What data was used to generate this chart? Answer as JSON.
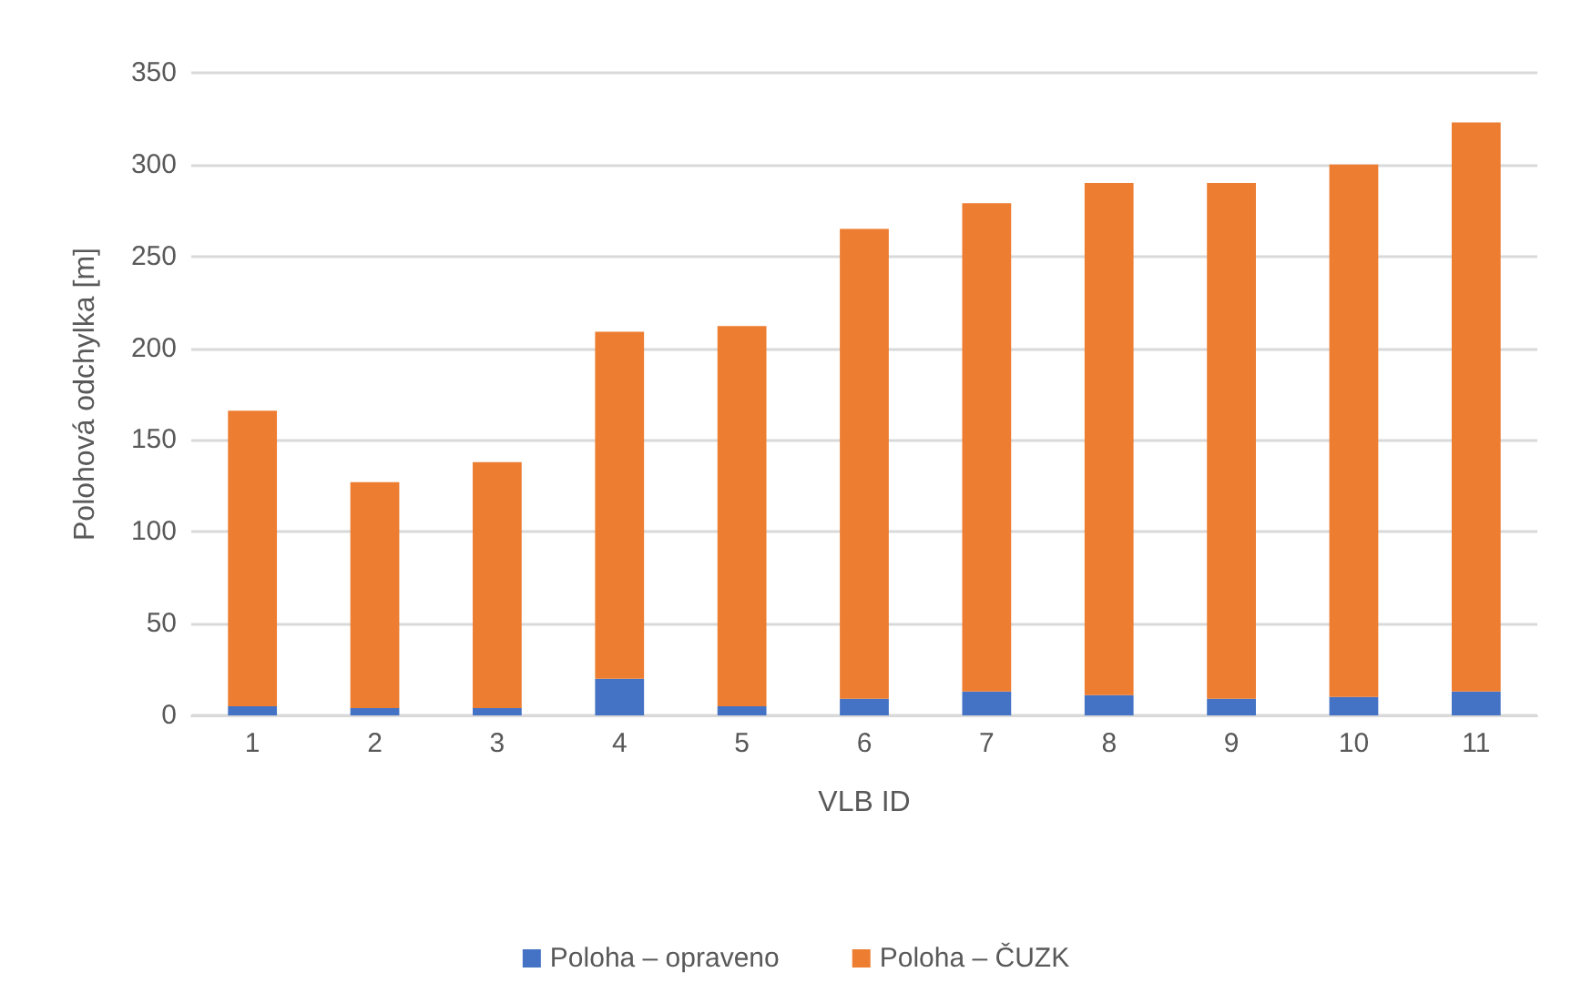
{
  "chart_data": {
    "type": "bar",
    "stacked": true,
    "xlabel": "VLB ID",
    "ylabel": "Polohová odchylka [m]",
    "categories": [
      "1",
      "2",
      "3",
      "4",
      "5",
      "6",
      "7",
      "8",
      "9",
      "10",
      "11"
    ],
    "series": [
      {
        "name": "Poloha – opraveno",
        "color": "#4472c4",
        "values": [
          5,
          4,
          4,
          20,
          5,
          9,
          13,
          11,
          9,
          10,
          13
        ]
      },
      {
        "name": "Poloha – ČUZK",
        "color": "#ed7d31",
        "values": [
          161,
          123,
          134,
          189,
          207,
          256,
          266,
          279,
          281,
          290,
          310
        ]
      }
    ],
    "ylim": [
      0,
      350
    ],
    "yticks": [
      0,
      50,
      100,
      150,
      200,
      250,
      300,
      350
    ],
    "grid": "y",
    "legend": "bottom"
  }
}
